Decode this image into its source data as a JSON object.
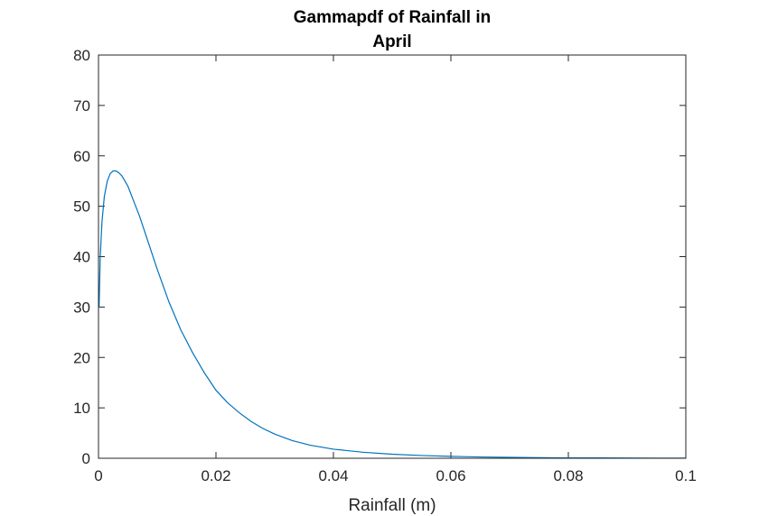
{
  "chart_data": {
    "type": "line",
    "title_lines": [
      "Gammapdf of Rainfall in",
      "April"
    ],
    "xlabel": "Rainfall (m)",
    "ylabel": "",
    "xlim": [
      0,
      0.1
    ],
    "ylim": [
      0,
      80
    ],
    "x_ticks": [
      0,
      0.02,
      0.04,
      0.06,
      0.08,
      0.1
    ],
    "x_tick_labels": [
      "0",
      "0.02",
      "0.04",
      "0.06",
      "0.08",
      "0.1"
    ],
    "y_ticks": [
      0,
      10,
      20,
      30,
      40,
      50,
      60,
      70,
      80
    ],
    "y_tick_labels": [
      "0",
      "10",
      "20",
      "30",
      "40",
      "50",
      "60",
      "70",
      "80"
    ],
    "grid": false,
    "box": true,
    "series": [
      {
        "color": "#0072bd",
        "x": [
          0.0001,
          0.0003,
          0.0006,
          0.001,
          0.0015,
          0.002,
          0.0025,
          0.003,
          0.0035,
          0.004,
          0.005,
          0.006,
          0.007,
          0.008,
          0.009,
          0.01,
          0.012,
          0.014,
          0.016,
          0.018,
          0.02,
          0.022,
          0.024,
          0.026,
          0.028,
          0.03,
          0.033,
          0.036,
          0.04,
          0.045,
          0.05,
          0.055,
          0.06,
          0.065,
          0.07,
          0.075,
          0.08,
          0.085,
          0.09,
          0.095,
          0.1
        ],
        "y": [
          30,
          40,
          47,
          52,
          55,
          56.5,
          57,
          57,
          56.6,
          56,
          54,
          51,
          48,
          44.5,
          41,
          37.5,
          31,
          25.5,
          21,
          17,
          13.5,
          11,
          9,
          7.3,
          5.9,
          4.8,
          3.5,
          2.6,
          1.8,
          1.2,
          0.8,
          0.55,
          0.38,
          0.26,
          0.18,
          0.12,
          0.08,
          0.06,
          0.04,
          0.03,
          0.02
        ]
      }
    ]
  }
}
